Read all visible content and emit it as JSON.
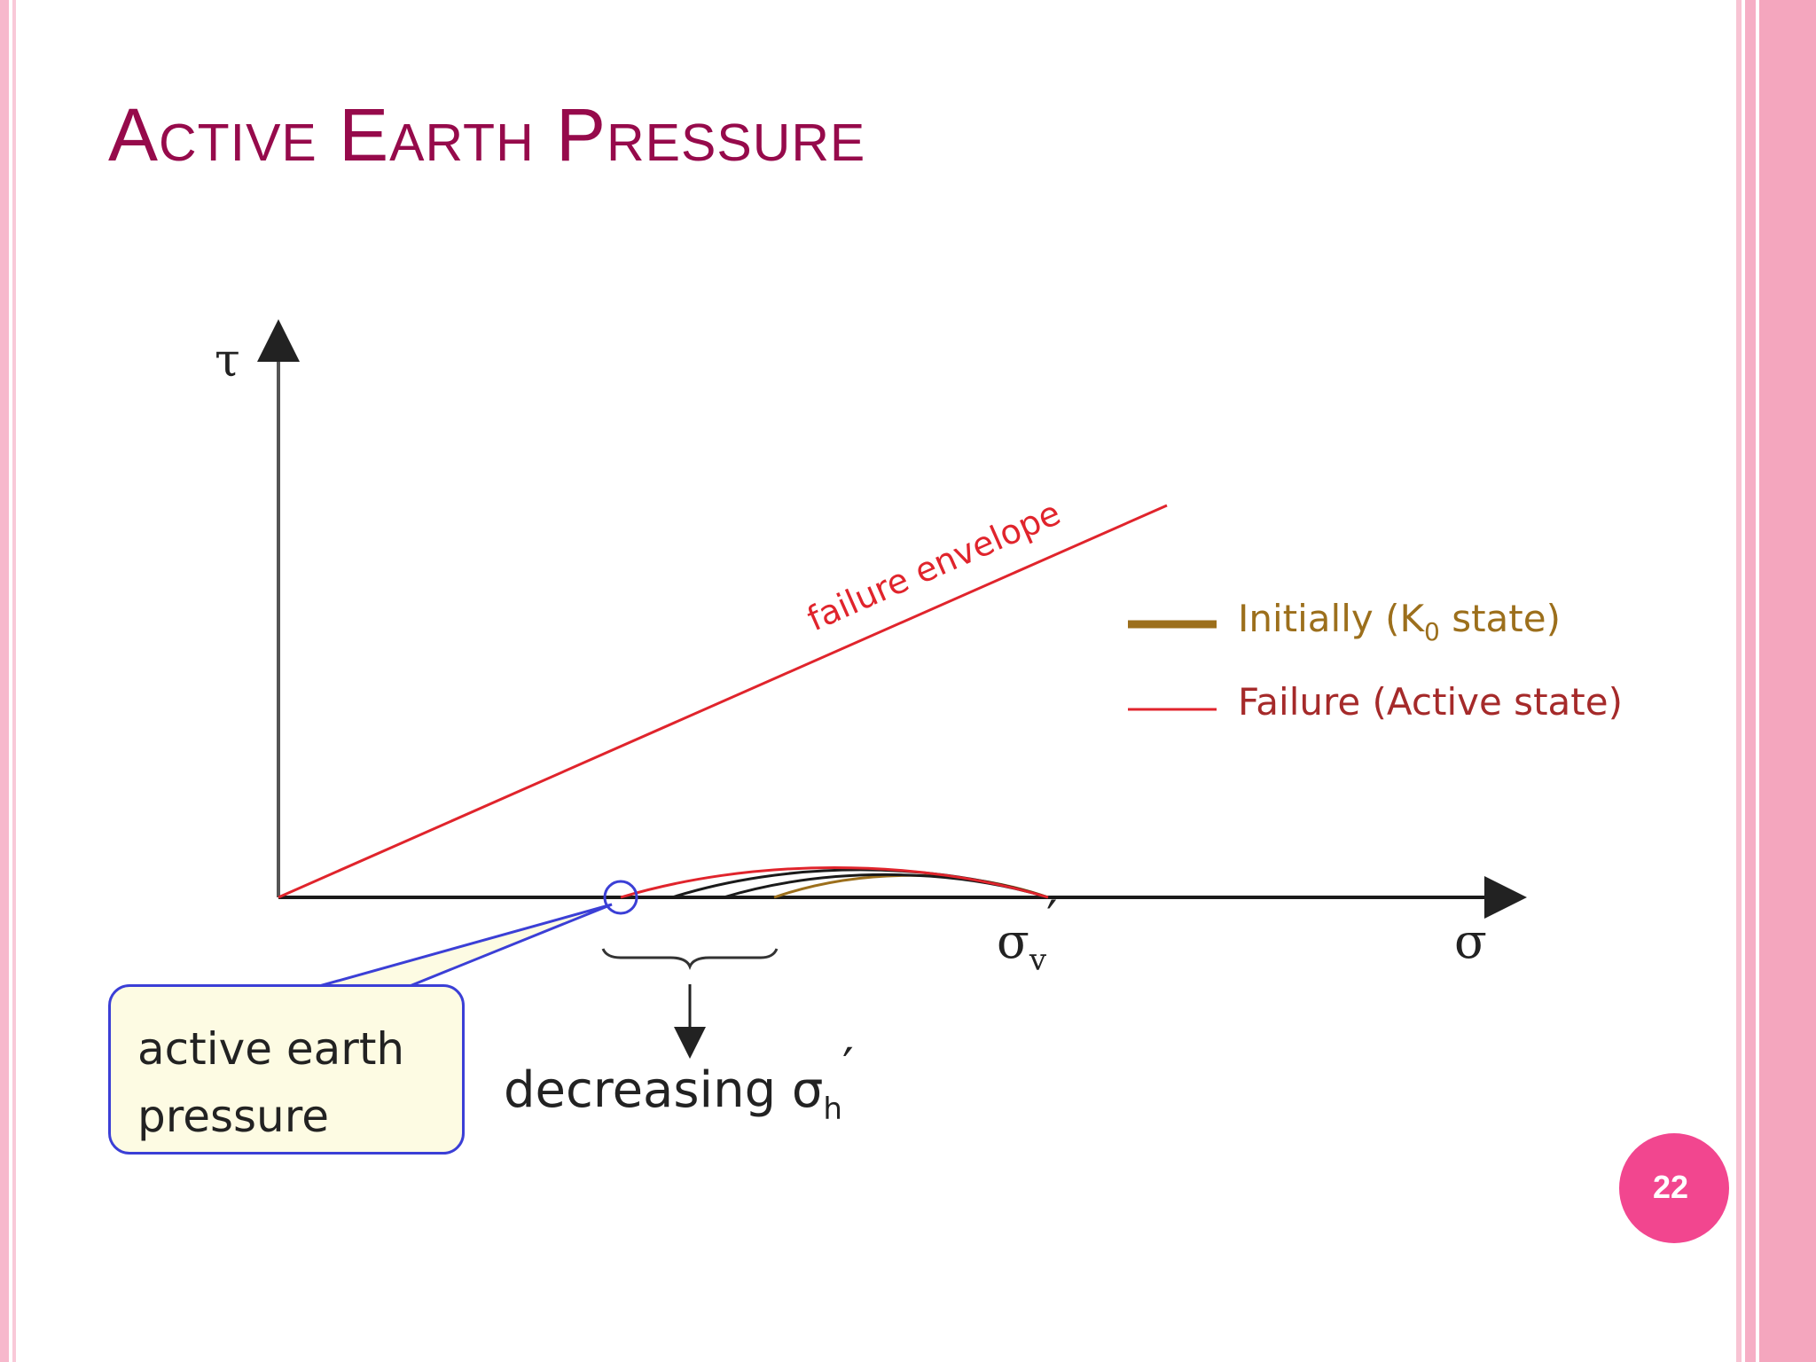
{
  "slide": {
    "title": "Active Earth Pressure",
    "page_number": "22"
  },
  "diagram": {
    "axis_tau": "τ",
    "axis_sigma": "σ",
    "sigma_v_label": "σv′",
    "envelope_label": "failure envelope",
    "legend": [
      {
        "label": "Initially (K0 state)",
        "color": "#9c6f1c"
      },
      {
        "label": "Failure (Active state)",
        "color": "#e0242c"
      }
    ],
    "brace_label": "decreasing σh′",
    "callout": [
      "active earth",
      "pressure"
    ],
    "colors": {
      "envelope": "#e0242c",
      "initial": "#9c6f1c",
      "intermediate": "#1a1a1a",
      "callout_border": "#3b3fd6"
    }
  }
}
